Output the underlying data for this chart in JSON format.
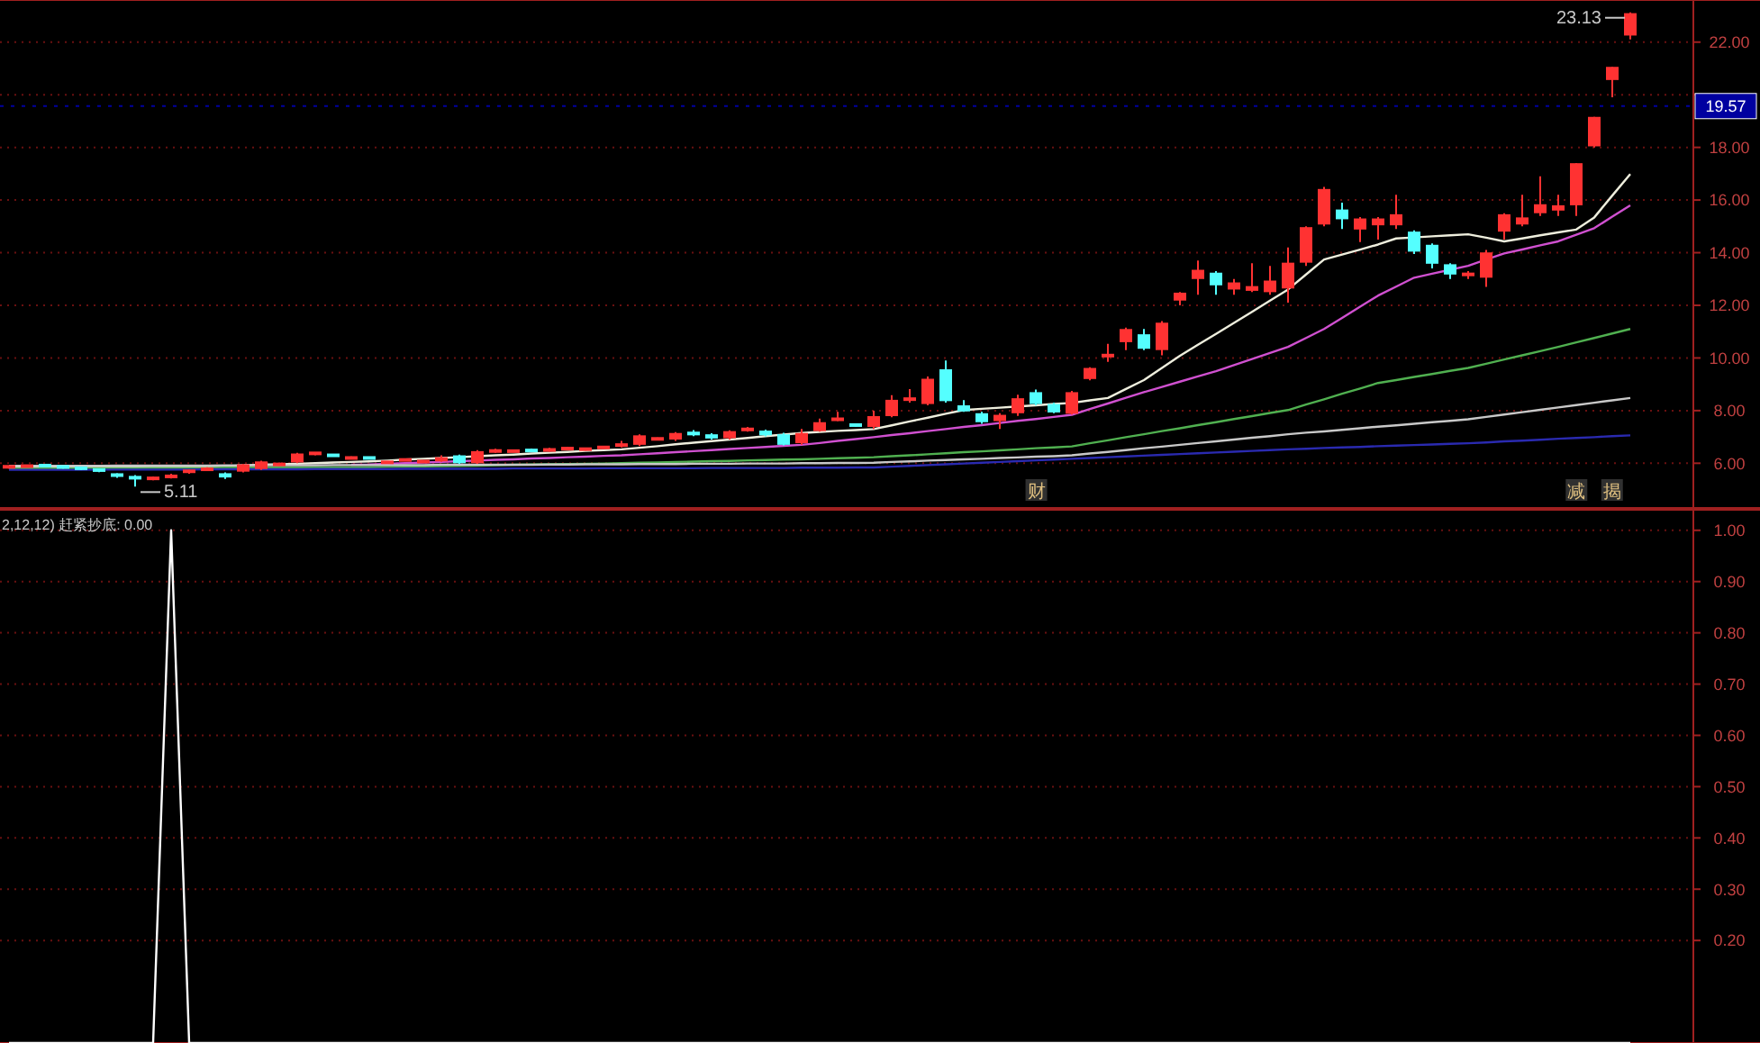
{
  "chart_data": [
    {
      "type": "candlestick",
      "ylim": [
        4.3,
        23.6
      ],
      "yticks": [
        {
          "value": 6,
          "label": "6.00"
        },
        {
          "value": 8,
          "label": "8.00"
        },
        {
          "value": 10,
          "label": "10.00"
        },
        {
          "value": 12,
          "label": "12.00"
        },
        {
          "value": 14,
          "label": "14.00"
        },
        {
          "value": 16,
          "label": "16.00"
        },
        {
          "value": 18,
          "label": "18.00"
        },
        {
          "value": 20,
          "label": null
        },
        {
          "value": 22,
          "label": "22.00"
        }
      ],
      "grid": "y",
      "colors": [
        "#ff3232",
        "#ff3232",
        "#54ffff",
        "#54ffff",
        "#54ffff",
        "#54ffff",
        "#54ffff",
        "#54ffff",
        "#ff3232",
        "#ff3232",
        "#ff3232",
        "#ff3232",
        "#54ffff",
        "#ff3232",
        "#ff3232",
        "#ff3232",
        "#ff3232",
        "#ff3232",
        "#54ffff",
        "#ff3232",
        "#54ffff",
        "#ff3232",
        "#ff3232",
        "#ff3232",
        "#ff3232",
        "#54ffff",
        "#ff3232",
        "#ff3232",
        "#ff3232",
        "#54ffff",
        "#ff3232",
        "#ff3232",
        "#ff3232",
        "#ff3232",
        "#ff3232",
        "#ff3232",
        "#ff3232",
        "#ff3232",
        "#54ffff",
        "#54ffff",
        "#ff3232",
        "#ff3232",
        "#54ffff",
        "#54ffff",
        "#ff3232",
        "#ff3232",
        "#ff3232",
        "#54ffff",
        "#ff3232",
        "#ff3232",
        "#ff3232",
        "#ff3232",
        "#54ffff",
        "#54ffff",
        "#54ffff",
        "#ff3232",
        "#ff3232",
        "#54ffff",
        "#54ffff",
        "#ff3232",
        "#ff3232",
        "#ff3232",
        "#ff3232",
        "#54ffff",
        "#ff3232",
        "#ff3232",
        "#ff3232",
        "#54ffff",
        "#ff3232",
        "#ff3232",
        "#ff3232",
        "#ff3232",
        "#ff3232",
        "#ff3232",
        "#54ffff",
        "#ff3232",
        "#ff3232",
        "#ff3232",
        "#54ffff",
        "#54ffff",
        "#54ffff",
        "#ff3232",
        "#ff3232",
        "#ff3232",
        "#ff3232",
        "#ff3232",
        "#ff3232",
        "#ff3232",
        "#ff3232",
        "#ff3232",
        "#ff3232"
      ],
      "categories": [
        null,
        null,
        null,
        null,
        null,
        null,
        null,
        null,
        null,
        null,
        null,
        null,
        null,
        null,
        null,
        null,
        null,
        null,
        null,
        null,
        null,
        null,
        null,
        null,
        null,
        null,
        null,
        null,
        null,
        null,
        null,
        null,
        null,
        null,
        null,
        null,
        null,
        null,
        null,
        null,
        null,
        null,
        null,
        null,
        null,
        null,
        null,
        null,
        null,
        null,
        null,
        null,
        null,
        null,
        null,
        null,
        null,
        null,
        null,
        null,
        null,
        null,
        null,
        null,
        null,
        null,
        null,
        null,
        null,
        null,
        null,
        null,
        null,
        null,
        null,
        null,
        null,
        null,
        null,
        null,
        null,
        null,
        null,
        null,
        null,
        null,
        null,
        null,
        null,
        null,
        null
      ],
      "ohlc": [
        [
          5.85,
          5.9,
          5.8,
          5.88
        ],
        [
          5.88,
          5.92,
          5.84,
          5.9
        ],
        [
          5.92,
          5.95,
          5.86,
          5.9
        ],
        [
          5.88,
          5.9,
          5.8,
          5.84
        ],
        [
          5.84,
          5.86,
          5.74,
          5.78
        ],
        [
          5.78,
          5.8,
          5.66,
          5.7
        ],
        [
          5.6,
          5.62,
          5.45,
          5.5
        ],
        [
          5.5,
          5.55,
          5.11,
          5.4
        ],
        [
          5.4,
          5.5,
          5.35,
          5.45
        ],
        [
          5.45,
          5.6,
          5.42,
          5.55
        ],
        [
          5.66,
          5.75,
          5.6,
          5.73
        ],
        [
          5.76,
          5.85,
          5.7,
          5.78
        ],
        [
          5.62,
          5.65,
          5.4,
          5.46
        ],
        [
          5.68,
          5.98,
          5.65,
          5.96
        ],
        [
          5.78,
          6.1,
          5.75,
          6.07
        ],
        [
          5.95,
          6.02,
          5.9,
          5.96
        ],
        [
          6.03,
          6.4,
          6.0,
          6.37
        ],
        [
          6.37,
          6.42,
          6.3,
          6.38
        ],
        [
          6.32,
          6.34,
          6.26,
          6.28
        ],
        [
          6.2,
          6.26,
          6.15,
          6.2
        ],
        [
          6.22,
          6.25,
          6.15,
          6.18
        ],
        [
          6.0,
          6.08,
          5.98,
          6.07
        ],
        [
          6.12,
          6.16,
          6.08,
          6.13
        ],
        [
          6.06,
          6.1,
          6.02,
          6.07
        ],
        [
          6.07,
          6.3,
          6.05,
          6.23
        ],
        [
          6.3,
          6.33,
          5.98,
          6.0
        ],
        [
          6.0,
          6.5,
          5.98,
          6.46
        ],
        [
          6.46,
          6.55,
          6.4,
          6.47
        ],
        [
          6.46,
          6.5,
          6.42,
          6.46
        ],
        [
          6.53,
          6.56,
          6.42,
          6.44
        ],
        [
          6.5,
          6.58,
          6.44,
          6.51
        ],
        [
          6.55,
          6.62,
          6.5,
          6.56
        ],
        [
          6.53,
          6.58,
          6.48,
          6.54
        ],
        [
          6.6,
          6.65,
          6.55,
          6.6
        ],
        [
          6.68,
          6.85,
          6.6,
          6.7
        ],
        [
          6.7,
          7.1,
          6.65,
          7.06
        ],
        [
          6.92,
          6.98,
          6.88,
          6.93
        ],
        [
          6.9,
          7.18,
          6.85,
          7.15
        ],
        [
          7.2,
          7.26,
          7.03,
          7.06
        ],
        [
          7.1,
          7.14,
          6.9,
          6.94
        ],
        [
          6.95,
          7.25,
          6.9,
          7.22
        ],
        [
          7.28,
          7.38,
          7.2,
          7.29
        ],
        [
          7.24,
          7.28,
          7.02,
          7.06
        ],
        [
          7.1,
          7.16,
          6.68,
          6.7
        ],
        [
          6.76,
          7.3,
          6.7,
          7.15
        ],
        [
          7.22,
          7.7,
          7.2,
          7.56
        ],
        [
          7.66,
          7.95,
          7.6,
          7.68
        ],
        [
          7.46,
          7.5,
          7.4,
          7.44
        ],
        [
          7.38,
          8.0,
          7.3,
          7.79
        ],
        [
          7.79,
          8.59,
          7.75,
          8.41
        ],
        [
          8.43,
          8.82,
          8.3,
          8.44
        ],
        [
          8.25,
          9.3,
          8.2,
          9.21
        ],
        [
          9.57,
          9.9,
          8.3,
          8.36
        ],
        [
          8.2,
          8.4,
          7.95,
          7.97
        ],
        [
          7.9,
          7.95,
          7.5,
          7.56
        ],
        [
          7.6,
          7.9,
          7.3,
          7.84
        ],
        [
          7.9,
          8.6,
          7.8,
          8.47
        ],
        [
          8.7,
          8.8,
          8.2,
          8.25
        ],
        [
          8.25,
          8.3,
          7.9,
          7.93
        ],
        [
          7.88,
          8.75,
          7.85,
          8.7
        ],
        [
          9.2,
          9.65,
          9.15,
          9.62
        ],
        [
          10.08,
          10.54,
          9.85,
          10.1
        ],
        [
          10.6,
          11.15,
          10.3,
          11.1
        ],
        [
          10.9,
          11.1,
          10.3,
          10.35
        ],
        [
          10.3,
          11.4,
          10.1,
          11.34
        ],
        [
          12.18,
          12.5,
          12.0,
          12.48
        ],
        [
          13.0,
          13.7,
          12.4,
          13.35
        ],
        [
          13.24,
          13.3,
          12.4,
          12.76
        ],
        [
          12.6,
          13.0,
          12.4,
          12.87
        ],
        [
          12.55,
          13.6,
          12.5,
          12.73
        ],
        [
          12.5,
          13.5,
          12.4,
          12.94
        ],
        [
          12.64,
          14.2,
          12.1,
          13.62
        ],
        [
          13.62,
          15.0,
          13.5,
          14.97
        ],
        [
          15.07,
          16.5,
          15.0,
          16.42
        ],
        [
          15.64,
          15.9,
          14.9,
          15.27
        ],
        [
          14.88,
          15.35,
          14.4,
          15.3
        ],
        [
          15.04,
          15.35,
          14.5,
          15.3
        ],
        [
          15.04,
          16.2,
          14.9,
          15.46
        ],
        [
          14.8,
          14.85,
          13.95,
          14.04
        ],
        [
          14.3,
          14.35,
          13.4,
          13.58
        ],
        [
          13.56,
          13.6,
          13.0,
          13.17
        ],
        [
          13.17,
          13.3,
          13.0,
          13.18
        ],
        [
          13.05,
          14.1,
          12.7,
          14.01
        ],
        [
          14.8,
          15.5,
          14.5,
          15.46
        ],
        [
          15.07,
          16.2,
          15.0,
          15.34
        ],
        [
          15.5,
          16.9,
          15.4,
          15.84
        ],
        [
          15.6,
          16.2,
          15.4,
          15.8
        ],
        [
          15.8,
          17.4,
          15.4,
          17.4
        ],
        [
          18.04,
          19.16,
          18.0,
          19.16
        ],
        [
          20.56,
          21.06,
          19.9,
          21.06
        ],
        [
          22.25,
          23.13,
          22.1,
          23.1
        ]
      ],
      "series": [
        {
          "type": "line",
          "color": "#eeeedd",
          "values": [
            5.85,
            5.85,
            5.85,
            5.85,
            5.85,
            5.85,
            5.85,
            5.85,
            5.85,
            5.85,
            5.85,
            5.87,
            5.89,
            5.92,
            5.94,
            5.96,
            5.98,
            6.0,
            6.03,
            6.05,
            6.07,
            6.1,
            6.14,
            6.17,
            6.2,
            6.23,
            6.27,
            6.3,
            6.33,
            6.37,
            6.4,
            6.43,
            6.47,
            6.5,
            6.53,
            6.59,
            6.65,
            6.72,
            6.78,
            6.84,
            6.9,
            6.96,
            7.03,
            7.09,
            7.15,
            7.19,
            7.23,
            7.26,
            7.3,
            7.44,
            7.59,
            7.73,
            7.88,
            8.02,
            8.07,
            8.11,
            8.16,
            8.2,
            8.25,
            8.29,
            8.39,
            8.48,
            8.82,
            9.16,
            9.62,
            10.08,
            10.5,
            10.91,
            11.33,
            11.75,
            12.18,
            12.6,
            13.17,
            13.74,
            13.93,
            14.12,
            14.31,
            14.54,
            14.58,
            14.62,
            14.66,
            14.7,
            14.57,
            14.43,
            14.54,
            14.66,
            14.77,
            14.88,
            15.34,
            16.17,
            16.99
          ]
        },
        {
          "type": "line",
          "color": "#d050d0",
          "values": [
            null,
            null,
            null,
            null,
            null,
            null,
            null,
            null,
            null,
            null,
            null,
            null,
            null,
            null,
            null,
            null,
            null,
            null,
            null,
            5.94,
            5.95,
            5.98,
            6.0,
            6.03,
            6.05,
            6.08,
            6.1,
            6.13,
            6.15,
            6.18,
            6.2,
            6.23,
            6.25,
            6.28,
            6.3,
            6.34,
            6.38,
            6.42,
            6.46,
            6.5,
            6.54,
            6.58,
            6.62,
            6.66,
            6.7,
            6.77,
            6.85,
            6.92,
            6.99,
            7.07,
            7.14,
            7.22,
            7.3,
            7.38,
            7.45,
            7.53,
            7.61,
            7.68,
            7.76,
            7.84,
            8.06,
            8.27,
            8.49,
            8.7,
            8.9,
            9.1,
            9.3,
            9.5,
            9.73,
            9.96,
            10.19,
            10.42,
            10.76,
            11.1,
            11.52,
            11.95,
            12.37,
            12.71,
            13.05,
            13.2,
            13.35,
            13.5,
            13.74,
            13.97,
            14.12,
            14.28,
            14.43,
            14.68,
            14.93,
            15.37,
            15.8
          ]
        },
        {
          "type": "line",
          "color": "#50b050",
          "values": [
            5.8,
            5.8,
            5.8,
            5.8,
            5.81,
            5.81,
            5.81,
            5.81,
            5.82,
            5.82,
            5.82,
            5.82,
            5.83,
            5.83,
            5.83,
            5.83,
            5.84,
            5.84,
            5.84,
            5.84,
            5.85,
            5.86,
            5.87,
            5.88,
            5.89,
            5.9,
            5.91,
            5.92,
            5.94,
            5.95,
            5.96,
            5.97,
            5.98,
            5.99,
            6.0,
            6.02,
            6.03,
            6.05,
            6.06,
            6.08,
            6.09,
            6.11,
            6.12,
            6.14,
            6.15,
            6.17,
            6.19,
            6.21,
            6.23,
            6.27,
            6.3,
            6.34,
            6.38,
            6.42,
            6.45,
            6.49,
            6.53,
            6.57,
            6.6,
            6.64,
            6.76,
            6.87,
            6.99,
            7.1,
            7.22,
            7.33,
            7.45,
            7.56,
            7.68,
            7.79,
            7.91,
            8.02,
            8.23,
            8.43,
            8.64,
            8.84,
            9.05,
            9.16,
            9.28,
            9.39,
            9.51,
            9.62,
            9.78,
            9.94,
            10.1,
            10.26,
            10.42,
            10.59,
            10.76,
            10.93,
            11.1
          ]
        },
        {
          "type": "line",
          "color": "#c8c8c8",
          "values": [
            5.9,
            5.9,
            5.9,
            5.9,
            5.9,
            5.9,
            5.91,
            5.91,
            5.91,
            5.91,
            5.91,
            5.91,
            5.92,
            5.92,
            5.92,
            5.92,
            5.92,
            5.92,
            5.93,
            5.93,
            5.93,
            5.93,
            5.93,
            5.93,
            5.94,
            5.94,
            5.94,
            5.94,
            5.94,
            5.94,
            5.95,
            5.95,
            5.96,
            5.96,
            5.96,
            5.97,
            5.97,
            5.97,
            5.98,
            5.98,
            5.98,
            5.99,
            5.99,
            5.99,
            6.0,
            6.0,
            6.01,
            6.01,
            6.02,
            6.05,
            6.07,
            6.1,
            6.12,
            6.15,
            6.17,
            6.2,
            6.22,
            6.25,
            6.27,
            6.3,
            6.37,
            6.43,
            6.5,
            6.57,
            6.63,
            6.7,
            6.77,
            6.83,
            6.9,
            6.97,
            7.03,
            7.1,
            7.16,
            7.21,
            7.27,
            7.33,
            7.39,
            7.44,
            7.5,
            7.56,
            7.61,
            7.67,
            7.76,
            7.85,
            7.94,
            8.03,
            8.12,
            8.21,
            8.3,
            8.39,
            8.48
          ]
        },
        {
          "type": "line",
          "color": "#2a2ab0",
          "values": [
            5.75,
            5.75,
            5.75,
            5.75,
            5.75,
            5.76,
            5.76,
            5.76,
            5.76,
            5.76,
            5.76,
            5.77,
            5.77,
            5.77,
            5.77,
            5.77,
            5.77,
            5.78,
            5.78,
            5.78,
            5.78,
            5.78,
            5.79,
            5.79,
            5.79,
            5.79,
            5.79,
            5.79,
            5.8,
            5.8,
            5.8,
            5.8,
            5.8,
            5.81,
            5.81,
            5.81,
            5.81,
            5.81,
            5.81,
            5.82,
            5.82,
            5.82,
            5.82,
            5.82,
            5.83,
            5.83,
            5.83,
            5.84,
            5.84,
            5.87,
            5.9,
            5.93,
            5.96,
            5.99,
            6.02,
            6.05,
            6.08,
            6.11,
            6.14,
            6.17,
            6.2,
            6.23,
            6.26,
            6.29,
            6.32,
            6.35,
            6.38,
            6.41,
            6.44,
            6.47,
            6.5,
            6.53,
            6.55,
            6.58,
            6.6,
            6.62,
            6.65,
            6.67,
            6.69,
            6.71,
            6.74,
            6.76,
            6.79,
            6.83,
            6.86,
            6.89,
            6.93,
            6.96,
            6.99,
            7.03,
            7.06
          ]
        }
      ],
      "ref_lines": [
        {
          "axis": "y",
          "value": 19.57,
          "label": "19.57",
          "color": "#0000a0"
        }
      ],
      "annotations": [
        "23.13",
        "5.11",
        "财",
        "减",
        "揭"
      ]
    },
    {
      "type": "line",
      "title": "2,12,12) 赶紧抄底: 0.00",
      "ylim": [
        0,
        1.04
      ],
      "yticks": [
        {
          "value": 0.2,
          "label": "0.20"
        },
        {
          "value": 0.3,
          "label": "0.30"
        },
        {
          "value": 0.4,
          "label": "0.40"
        },
        {
          "value": 0.5,
          "label": "0.50"
        },
        {
          "value": 0.6,
          "label": "0.60"
        },
        {
          "value": 0.7,
          "label": "0.70"
        },
        {
          "value": 0.8,
          "label": "0.80"
        },
        {
          "value": 0.9,
          "label": "0.90"
        },
        {
          "value": 1,
          "label": "1.00"
        }
      ],
      "grid": "y",
      "categories": [
        null,
        null,
        null,
        null,
        null,
        null,
        null,
        null,
        null,
        null,
        null,
        null,
        null,
        null,
        null,
        null,
        null,
        null,
        null,
        null,
        null,
        null,
        null,
        null,
        null,
        null,
        null,
        null,
        null,
        null,
        null,
        null,
        null,
        null,
        null,
        null,
        null,
        null,
        null,
        null,
        null,
        null,
        null,
        null,
        null,
        null,
        null,
        null,
        null,
        null,
        null,
        null,
        null,
        null,
        null,
        null,
        null,
        null,
        null,
        null,
        null,
        null,
        null,
        null,
        null,
        null,
        null,
        null,
        null,
        null,
        null,
        null,
        null,
        null,
        null,
        null,
        null,
        null,
        null,
        null,
        null,
        null,
        null,
        null,
        null,
        null,
        null,
        null,
        null,
        null,
        null
      ],
      "series": [
        {
          "color": "#ffffff",
          "values": [
            0,
            0,
            0,
            0,
            0,
            0,
            0,
            0,
            0,
            1,
            0,
            0,
            0,
            0,
            0,
            0,
            0,
            0,
            0,
            0,
            0,
            0,
            0,
            0,
            0,
            0,
            0,
            0,
            0,
            0,
            0,
            0,
            0,
            0,
            0,
            0,
            0,
            0,
            0,
            0,
            0,
            0,
            0,
            0,
            0,
            0,
            0,
            0,
            0,
            0,
            0,
            0,
            0,
            0,
            0,
            0,
            0,
            0,
            0,
            0,
            0,
            0,
            0,
            0,
            0,
            0,
            0,
            0,
            0,
            0,
            0,
            0,
            0,
            0,
            0,
            0,
            0,
            0,
            0,
            0,
            0,
            0,
            0,
            0,
            0,
            0,
            0,
            0,
            0,
            0,
            0
          ]
        }
      ]
    }
  ]
}
